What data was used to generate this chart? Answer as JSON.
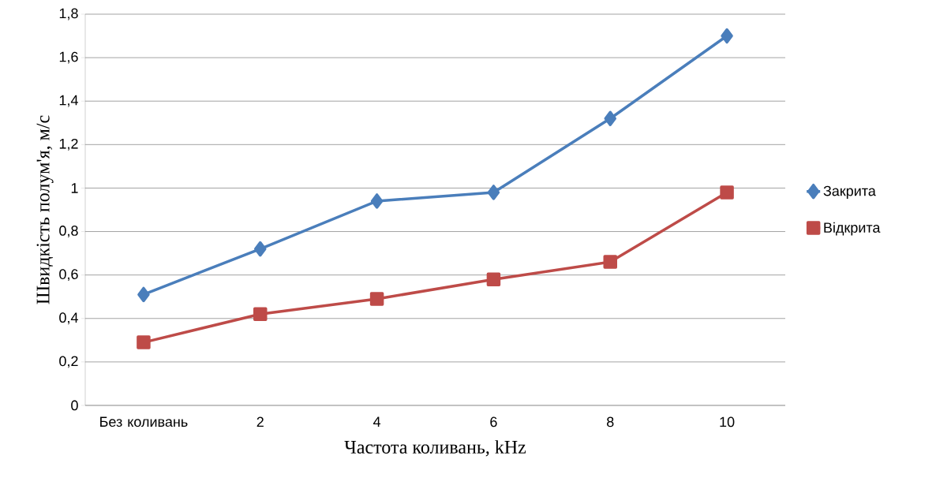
{
  "chart_data": {
    "type": "line",
    "xlabel": "Частота коливань, kHz",
    "ylabel": "Швидкість полум'я, м/с",
    "categories": [
      "Без коливань",
      "2",
      "4",
      "6",
      "8",
      "10"
    ],
    "series": [
      {
        "name": "Закрита",
        "color": "#4a7ebb",
        "marker": "diamond",
        "values": [
          0.51,
          0.72,
          0.94,
          0.98,
          1.32,
          1.7
        ]
      },
      {
        "name": "Відкрита",
        "color": "#be4b48",
        "marker": "square",
        "values": [
          0.29,
          0.42,
          0.49,
          0.58,
          0.66,
          0.98
        ]
      }
    ],
    "ylim": [
      0,
      1.8
    ],
    "yticks": [
      {
        "value": 0,
        "label": "0"
      },
      {
        "value": 0.2,
        "label": "0,2"
      },
      {
        "value": 0.4,
        "label": "0,4"
      },
      {
        "value": 0.6,
        "label": "0,6"
      },
      {
        "value": 0.8,
        "label": "0,8"
      },
      {
        "value": 1,
        "label": "1"
      },
      {
        "value": 1.2,
        "label": "1,2"
      },
      {
        "value": 1.4,
        "label": "1,4"
      },
      {
        "value": 1.6,
        "label": "1,6"
      },
      {
        "value": 1.8,
        "label": "1,8"
      }
    ],
    "grid": "y",
    "legend": "right",
    "line_style": "solid"
  }
}
